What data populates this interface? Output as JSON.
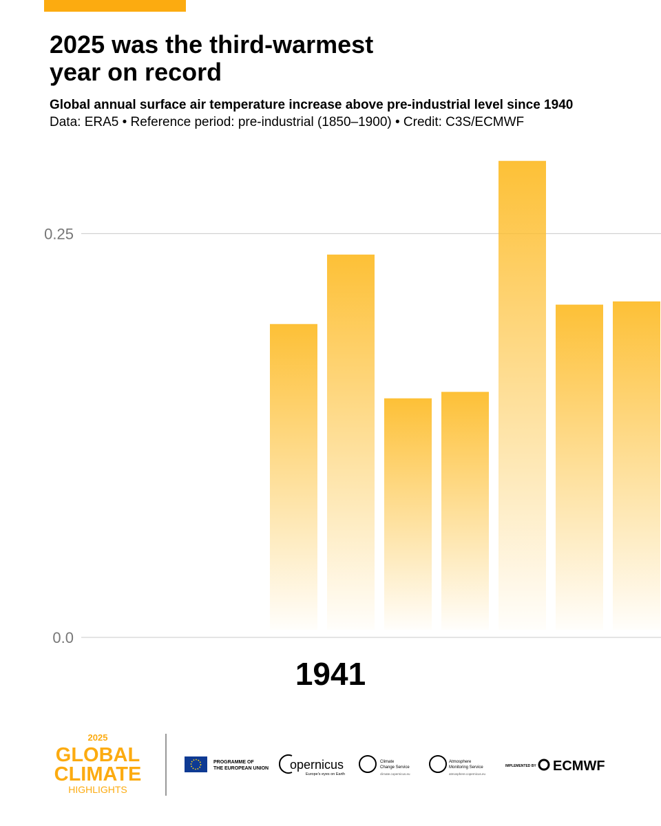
{
  "chart_data": {
    "type": "bar",
    "title": "2025 was the third-warmest year on record",
    "subtitle": "Global annual surface air temperature increase above pre-industrial level since 1940",
    "source": "Data: ERA5 • Reference period: pre-industrial (1850–1900) • Credit: C3S/ECMWF",
    "year_label": "1941",
    "categories": [
      null,
      null,
      null,
      null,
      null,
      null,
      null
    ],
    "values": [
      0.194,
      0.237,
      0.148,
      0.152,
      0.295,
      0.206,
      0.208
    ],
    "color": "#fdbd2c",
    "ylim": [
      0,
      0.3
    ],
    "yticks": [
      {
        "value": 0,
        "label": "0.0"
      },
      0.25
    ],
    "grid": true
  },
  "footer": {
    "brand_year": "2025",
    "brand_line1": "GLOBAL",
    "brand_line2": "CLIMATE",
    "brand_line3": "HIGHLIGHTS",
    "eu_line1": "PROGRAMME OF",
    "eu_line2": "THE EUROPEAN UNION",
    "copernicus": "opernicus",
    "copernicus_tagline": "Europe's eyes on Earth",
    "c3s_line1": "Climate",
    "c3s_line2": "Change Service",
    "c3s_url": "climate.copernicus.eu",
    "cams_line1": "Atmosphere",
    "cams_line2": "Monitoring Service",
    "cams_url": "atmosphere.copernicus.eu",
    "implemented_by": "IMPLEMENTED BY",
    "ecmwf": "ECMWF"
  }
}
